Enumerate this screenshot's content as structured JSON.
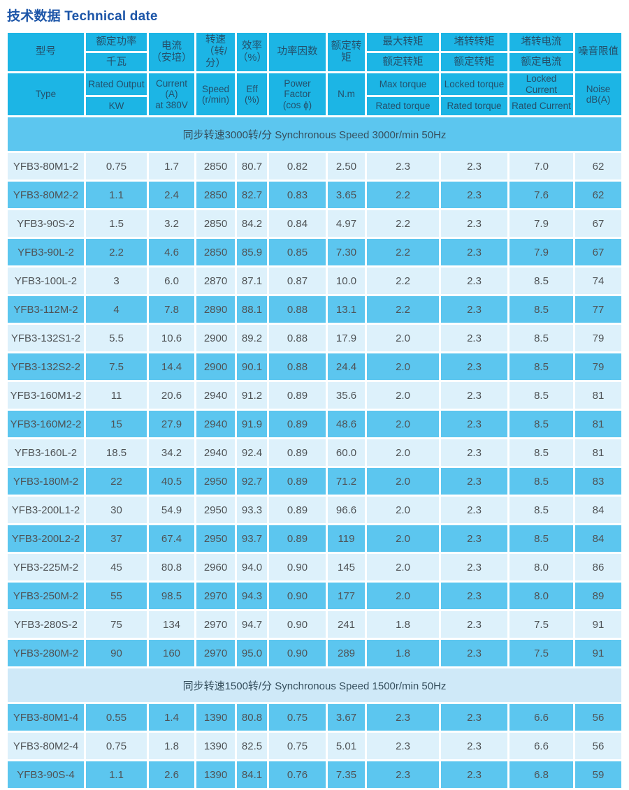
{
  "page_title": "技术数据 Technical date",
  "colors": {
    "header_bg": "#1cb5e5",
    "row_dark": "#5cc6ef",
    "row_light": "#ddf1fb",
    "band_light": "#cfe9f8",
    "title_text": "#1c55a8"
  },
  "table": {
    "header": {
      "type_cn": "型号",
      "type_en": "Type",
      "rated_output_cn": "额定功率",
      "rated_output_unit_cn": "千瓦",
      "rated_output_en": "Rated Output",
      "rated_output_unit_en": "KW",
      "current_cn": "电流\n（安培）",
      "current_en": "Current\n(A)\nat 380V",
      "speed_cn": "转速\n（转/分）",
      "speed_en": "Speed\n(r/min)",
      "eff_cn": "效率\n（%）",
      "eff_en": "Eff\n(%)",
      "power_factor_cn": "功率因数",
      "power_factor_en": "Power\nFactor\n(cos ϕ)",
      "rated_torque_cn": "额定转矩",
      "rated_torque_en": "N.m",
      "max_torque_cn": "最大转矩",
      "max_torque_denom_cn": "额定转矩",
      "max_torque_en": "Max torque",
      "max_torque_denom_en": "Rated torque",
      "locked_torque_cn": "堵转转矩",
      "locked_torque_denom_cn": "额定转矩",
      "locked_torque_en": "Locked torque",
      "locked_torque_denom_en": "Rated torque",
      "locked_current_cn": "堵转电流",
      "locked_current_denom_cn": "额定电流",
      "locked_current_en": "Locked Current",
      "locked_current_denom_en": "Rated Current",
      "noise_cn": "噪音限值",
      "noise_en": "Noise\ndB(A)"
    },
    "sections": [
      {
        "title": "同步转速3000转/分 Synchronous Speed 3000r/min 50Hz",
        "band_style": "dark-band",
        "first_row_shade": "light",
        "rows": [
          [
            "YFB3-80M1-2",
            "0.75",
            "1.7",
            "2850",
            "80.7",
            "0.82",
            "2.50",
            "2.3",
            "2.3",
            "7.0",
            "62"
          ],
          [
            "YFB3-80M2-2",
            "1.1",
            "2.4",
            "2850",
            "82.7",
            "0.83",
            "3.65",
            "2.2",
            "2.3",
            "7.6",
            "62"
          ],
          [
            "YFB3-90S-2",
            "1.5",
            "3.2",
            "2850",
            "84.2",
            "0.84",
            "4.97",
            "2.2",
            "2.3",
            "7.9",
            "67"
          ],
          [
            "YFB3-90L-2",
            "2.2",
            "4.6",
            "2850",
            "85.9",
            "0.85",
            "7.30",
            "2.2",
            "2.3",
            "7.9",
            "67"
          ],
          [
            "YFB3-100L-2",
            "3",
            "6.0",
            "2870",
            "87.1",
            "0.87",
            "10.0",
            "2.2",
            "2.3",
            "8.5",
            "74"
          ],
          [
            "YFB3-112M-2",
            "4",
            "7.8",
            "2890",
            "88.1",
            "0.88",
            "13.1",
            "2.2",
            "2.3",
            "8.5",
            "77"
          ],
          [
            "YFB3-132S1-2",
            "5.5",
            "10.6",
            "2900",
            "89.2",
            "0.88",
            "17.9",
            "2.0",
            "2.3",
            "8.5",
            "79"
          ],
          [
            "YFB3-132S2-2",
            "7.5",
            "14.4",
            "2900",
            "90.1",
            "0.88",
            "24.4",
            "2.0",
            "2.3",
            "8.5",
            "79"
          ],
          [
            "YFB3-160M1-2",
            "11",
            "20.6",
            "2940",
            "91.2",
            "0.89",
            "35.6",
            "2.0",
            "2.3",
            "8.5",
            "81"
          ],
          [
            "YFB3-160M2-2",
            "15",
            "27.9",
            "2940",
            "91.9",
            "0.89",
            "48.6",
            "2.0",
            "2.3",
            "8.5",
            "81"
          ],
          [
            "YFB3-160L-2",
            "18.5",
            "34.2",
            "2940",
            "92.4",
            "0.89",
            "60.0",
            "2.0",
            "2.3",
            "8.5",
            "81"
          ],
          [
            "YFB3-180M-2",
            "22",
            "40.5",
            "2950",
            "92.7",
            "0.89",
            "71.2",
            "2.0",
            "2.3",
            "8.5",
            "83"
          ],
          [
            "YFB3-200L1-2",
            "30",
            "54.9",
            "2950",
            "93.3",
            "0.89",
            "96.6",
            "2.0",
            "2.3",
            "8.5",
            "84"
          ],
          [
            "YFB3-200L2-2",
            "37",
            "67.4",
            "2950",
            "93.7",
            "0.89",
            "119",
            "2.0",
            "2.3",
            "8.5",
            "84"
          ],
          [
            "YFB3-225M-2",
            "45",
            "80.8",
            "2960",
            "94.0",
            "0.90",
            "145",
            "2.0",
            "2.3",
            "8.0",
            "86"
          ],
          [
            "YFB3-250M-2",
            "55",
            "98.5",
            "2970",
            "94.3",
            "0.90",
            "177",
            "2.0",
            "2.3",
            "8.0",
            "89"
          ],
          [
            "YFB3-280S-2",
            "75",
            "134",
            "2970",
            "94.7",
            "0.90",
            "241",
            "1.8",
            "2.3",
            "7.5",
            "91"
          ],
          [
            "YFB3-280M-2",
            "90",
            "160",
            "2970",
            "95.0",
            "0.90",
            "289",
            "1.8",
            "2.3",
            "7.5",
            "91"
          ]
        ]
      },
      {
        "title": "同步转速1500转/分 Synchronous Speed 1500r/min 50Hz",
        "band_style": "light-band",
        "first_row_shade": "dark",
        "rows": [
          [
            "YFB3-80M1-4",
            "0.55",
            "1.4",
            "1390",
            "80.8",
            "0.75",
            "3.67",
            "2.3",
            "2.3",
            "6.6",
            "56"
          ],
          [
            "YFB3-80M2-4",
            "0.75",
            "1.8",
            "1390",
            "82.5",
            "0.75",
            "5.01",
            "2.3",
            "2.3",
            "6.6",
            "56"
          ],
          [
            "YFB3-90S-4",
            "1.1",
            "2.6",
            "1390",
            "84.1",
            "0.76",
            "7.35",
            "2.3",
            "2.3",
            "6.8",
            "59"
          ]
        ]
      }
    ]
  }
}
